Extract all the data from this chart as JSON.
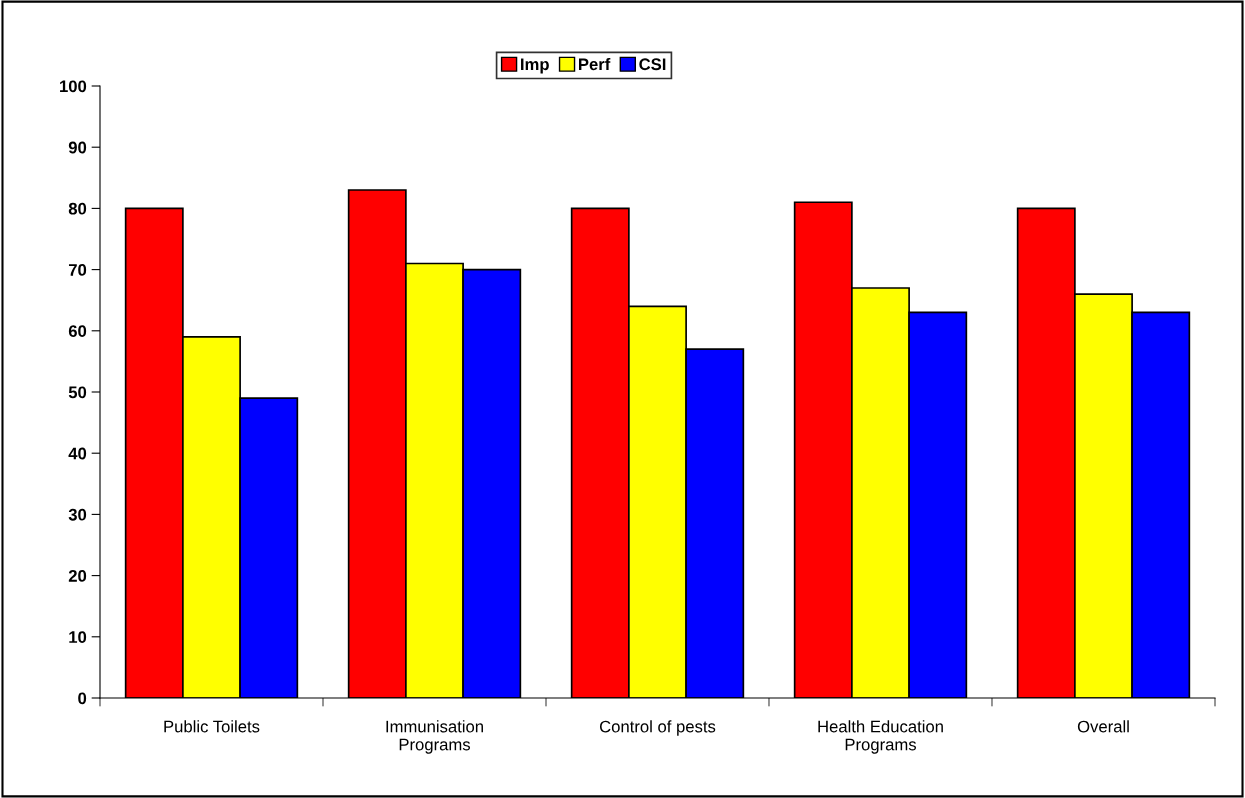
{
  "chart_data": {
    "type": "bar",
    "categories": [
      "Public Toilets",
      "Immunisation\nPrograms",
      "Control of pests",
      "Health Education\nPrograms",
      "Overall"
    ],
    "series": [
      {
        "name": "Imp",
        "color": "#ff0000",
        "values": [
          80,
          83,
          80,
          81,
          80
        ]
      },
      {
        "name": "Perf",
        "color": "#ffff00",
        "values": [
          59,
          71,
          64,
          67,
          66
        ]
      },
      {
        "name": "CSI",
        "color": "#0000ff",
        "values": [
          49,
          70,
          57,
          63,
          63
        ]
      }
    ],
    "ylim": [
      0,
      100
    ],
    "yticks": [
      0,
      10,
      20,
      30,
      40,
      50,
      60,
      70,
      80,
      90,
      100
    ],
    "grid": false,
    "legend": "top"
  }
}
